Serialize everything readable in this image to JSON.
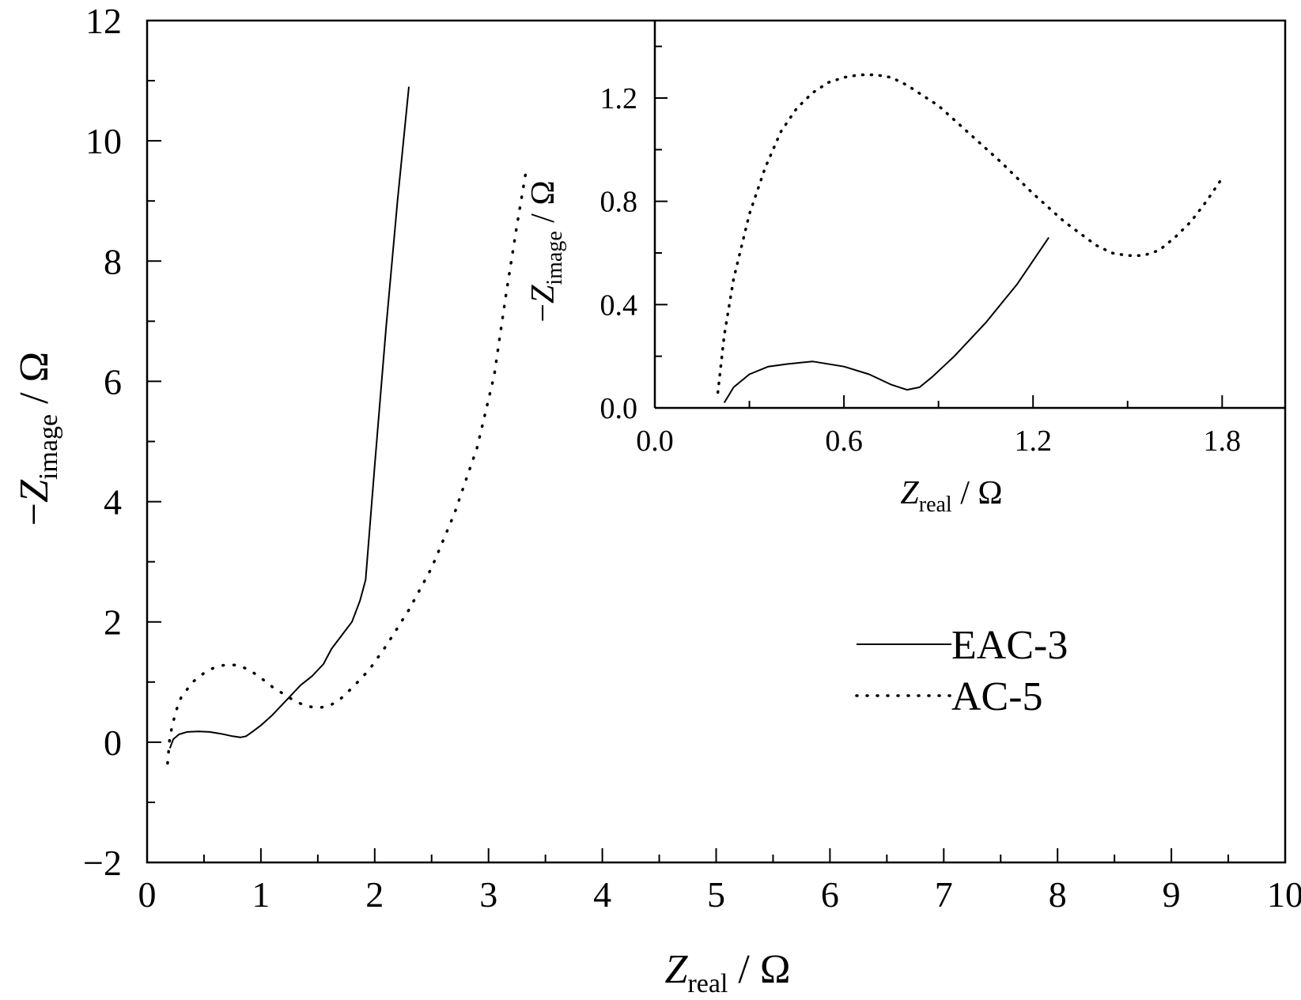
{
  "chart_data": [
    {
      "type": "line",
      "title": "",
      "xlabel": {
        "symbol": "Z",
        "sub": "real",
        "unit": " / Ω"
      },
      "ylabel": {
        "prefix": "−",
        "symbol": "Z",
        "sub": "image",
        "unit": " / Ω"
      },
      "xlim": [
        0,
        10
      ],
      "ylim": [
        -2,
        12
      ],
      "xticks": [
        0,
        1,
        2,
        3,
        4,
        5,
        6,
        7,
        8,
        9,
        10
      ],
      "yticks": [
        -2,
        0,
        2,
        4,
        6,
        8,
        10,
        12
      ],
      "xtick_labels": [
        "0",
        "1",
        "2",
        "3",
        "4",
        "5",
        "6",
        "7",
        "8",
        "9",
        "10"
      ],
      "ytick_labels": [
        "−2",
        "0",
        "2",
        "4",
        "6",
        "8",
        "10",
        "12"
      ],
      "grid": false,
      "legend": {
        "placement": "right-middle",
        "entries": [
          "EAC-3",
          "AC-5"
        ]
      },
      "series": [
        {
          "name": "EAC-3",
          "style": "solid",
          "color": "#000000",
          "x": [
            0.2,
            0.23,
            0.28,
            0.35,
            0.45,
            0.55,
            0.65,
            0.75,
            0.82,
            0.87,
            0.93,
            1.0,
            1.1,
            1.2,
            1.3,
            1.35,
            1.45,
            1.55,
            1.62,
            1.72,
            1.8,
            1.87,
            1.92,
            2.0,
            2.1,
            2.2,
            2.3
          ],
          "y": [
            -0.1,
            0.05,
            0.13,
            0.17,
            0.18,
            0.17,
            0.14,
            0.1,
            0.08,
            0.1,
            0.18,
            0.28,
            0.45,
            0.65,
            0.85,
            0.95,
            1.1,
            1.3,
            1.55,
            1.8,
            2.0,
            2.35,
            2.7,
            4.6,
            6.9,
            9.0,
            10.9
          ]
        },
        {
          "name": "AC-5",
          "style": "dotted",
          "color": "#000000",
          "x": [
            0.18,
            0.2,
            0.25,
            0.3,
            0.4,
            0.5,
            0.6,
            0.7,
            0.8,
            0.9,
            1.0,
            1.1,
            1.2,
            1.3,
            1.4,
            1.5,
            1.6,
            1.7,
            1.8,
            1.95,
            2.1,
            2.3,
            2.5,
            2.7,
            2.9,
            3.05,
            3.15,
            3.25,
            3.33
          ],
          "y": [
            -0.35,
            0.1,
            0.5,
            0.75,
            1.0,
            1.15,
            1.25,
            1.29,
            1.28,
            1.2,
            1.07,
            0.92,
            0.8,
            0.68,
            0.6,
            0.57,
            0.6,
            0.72,
            0.9,
            1.2,
            1.6,
            2.2,
            2.9,
            3.8,
            4.9,
            6.1,
            7.4,
            8.6,
            9.5
          ]
        }
      ]
    },
    {
      "type": "line",
      "title": "",
      "xlabel": {
        "symbol": "Z",
        "sub": "real",
        "unit": " / Ω"
      },
      "ylabel": {
        "prefix": "−",
        "symbol": "Z",
        "sub": "image",
        "unit": " / Ω"
      },
      "xlim": [
        0,
        2
      ],
      "ylim": [
        0,
        1.5
      ],
      "xticks": [
        0,
        0.6,
        1.2,
        1.8
      ],
      "yticks": [
        0,
        0.4,
        0.8,
        1.2
      ],
      "xtick_labels": [
        "0.0",
        "0.6",
        "1.2",
        "1.8"
      ],
      "ytick_labels": [
        "0.0",
        "0.4",
        "0.8",
        "1.2"
      ],
      "grid": false,
      "series": [
        {
          "name": "EAC-3",
          "style": "solid",
          "color": "#000000",
          "x": [
            0.22,
            0.25,
            0.3,
            0.36,
            0.42,
            0.5,
            0.6,
            0.68,
            0.75,
            0.8,
            0.84,
            0.88,
            0.95,
            1.05,
            1.15,
            1.25
          ],
          "y": [
            0.02,
            0.08,
            0.13,
            0.16,
            0.17,
            0.18,
            0.16,
            0.13,
            0.09,
            0.07,
            0.08,
            0.12,
            0.2,
            0.33,
            0.48,
            0.66
          ]
        },
        {
          "name": "AC-5",
          "style": "dotted",
          "color": "#000000",
          "x": [
            0.2,
            0.22,
            0.25,
            0.3,
            0.35,
            0.4,
            0.45,
            0.5,
            0.55,
            0.6,
            0.65,
            0.7,
            0.75,
            0.8,
            0.9,
            1.0,
            1.1,
            1.2,
            1.3,
            1.4,
            1.45,
            1.5,
            1.55,
            1.6,
            1.65,
            1.7,
            1.75,
            1.8
          ],
          "y": [
            0.06,
            0.28,
            0.5,
            0.75,
            0.93,
            1.07,
            1.16,
            1.22,
            1.26,
            1.28,
            1.29,
            1.29,
            1.28,
            1.25,
            1.17,
            1.06,
            0.95,
            0.83,
            0.72,
            0.63,
            0.6,
            0.59,
            0.59,
            0.61,
            0.66,
            0.72,
            0.8,
            0.89
          ]
        }
      ]
    }
  ]
}
